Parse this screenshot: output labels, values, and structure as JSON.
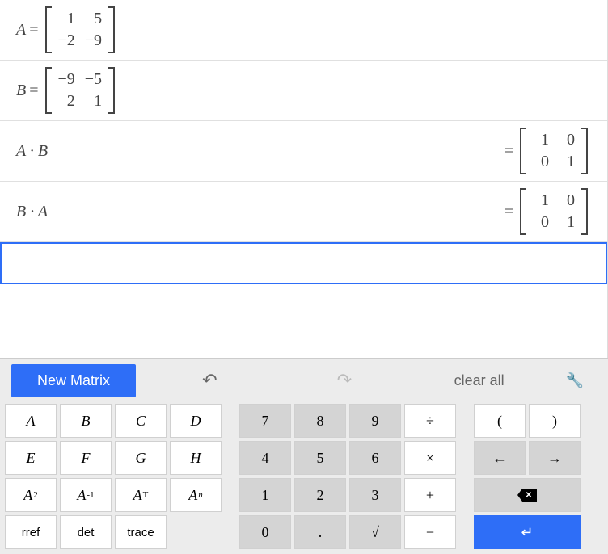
{
  "expressions": [
    {
      "lhs": "A",
      "matrix": [
        [
          "1",
          "5"
        ],
        [
          "−2",
          "−9"
        ]
      ]
    },
    {
      "lhs": "B",
      "matrix": [
        [
          "−9",
          "−5"
        ],
        [
          "2",
          "1"
        ]
      ]
    },
    {
      "lhs": "A · B",
      "result": [
        [
          "1",
          "0"
        ],
        [
          "0",
          "1"
        ]
      ]
    },
    {
      "lhs": "B · A",
      "result": [
        [
          "1",
          "0"
        ],
        [
          "0",
          "1"
        ]
      ]
    }
  ],
  "keypad": {
    "new_matrix": "New Matrix",
    "clear_all": "clear all",
    "vars": [
      "A",
      "B",
      "C",
      "D",
      "E",
      "F",
      "G",
      "H"
    ],
    "ops": [
      {
        "label": "A",
        "sup": "2"
      },
      {
        "label": "A",
        "sup": "-1"
      },
      {
        "label": "A",
        "sup": "T"
      },
      {
        "label": "A",
        "sup": "n",
        "sup_italic": true
      }
    ],
    "funcs": [
      "rref",
      "det",
      "trace"
    ],
    "numpad": [
      [
        "7",
        "8",
        "9",
        "÷"
      ],
      [
        "4",
        "5",
        "6",
        "×"
      ],
      [
        "1",
        "2",
        "3",
        "+"
      ],
      [
        "0",
        ".",
        "√",
        "−"
      ]
    ],
    "nav": {
      "lparen": "(",
      "rparen": ")",
      "left": "←",
      "right": "→",
      "enter": "↵"
    }
  },
  "colors": {
    "accent": "#2e6ef7",
    "key_gray": "#d4d4d4",
    "border": "#e0e0e0"
  }
}
